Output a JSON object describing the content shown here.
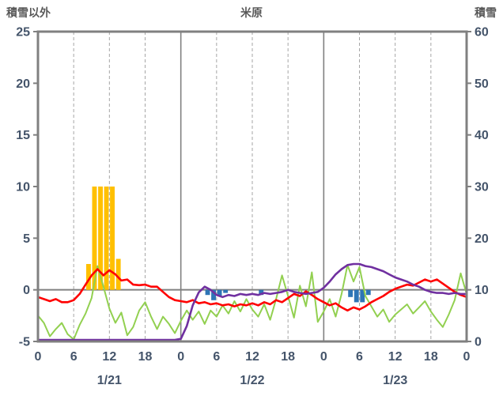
{
  "header": {
    "left_axis_title": "積雪以外",
    "title": "米原",
    "right_axis_title": "積雪"
  },
  "chart_data": {
    "type": "combo-bar-line",
    "title": "米原",
    "x_axis": {
      "unit": "hour",
      "range": [
        0,
        72
      ],
      "tick_positions": [
        0,
        6,
        12,
        18,
        24,
        30,
        36,
        42,
        48,
        54,
        60,
        66,
        72
      ],
      "tick_labels": [
        "0",
        "6",
        "12",
        "18",
        "0",
        "6",
        "12",
        "18",
        "0",
        "6",
        "12",
        "18",
        "0"
      ],
      "day_boundaries": [
        24,
        48
      ],
      "day_labels": [
        "1/21",
        "1/22",
        "1/23"
      ],
      "day_label_positions": [
        12,
        36,
        60
      ]
    },
    "y_left": {
      "title": "積雪以外",
      "min": -5,
      "max": 25,
      "ticks": [
        -5,
        0,
        5,
        10,
        15,
        20,
        25
      ]
    },
    "y_right": {
      "title": "積雪",
      "min": 0,
      "max": 60,
      "ticks": [
        0,
        10,
        20,
        30,
        40,
        50,
        60
      ]
    },
    "grid": {
      "vertical_6h": "dashed",
      "horizontal": "zero-line-only"
    },
    "legend": "none",
    "series": [
      {
        "name": "orange-bars",
        "type": "bar",
        "axis": "left",
        "color": "#FFC000",
        "values_by_hour": {
          "8": 2.5,
          "9": 10,
          "10": 10,
          "11": 10,
          "12": 10,
          "13": 3
        }
      },
      {
        "name": "blue-bars",
        "type": "bar",
        "axis": "left",
        "color": "#2E75B6",
        "values_by_hour": {
          "28": -0.5,
          "29": -1.0,
          "30": -0.6,
          "31": -0.3,
          "37": -0.5,
          "52": -0.7,
          "53": -1.2,
          "54": -1.2,
          "55": -0.5
        }
      },
      {
        "name": "green-line",
        "type": "line",
        "axis": "left",
        "color": "#92D050",
        "values": [
          -2.5,
          -3.2,
          -4.5,
          -3.8,
          -3.2,
          -4.3,
          -4.8,
          -3.4,
          -2.3,
          -0.8,
          2.3,
          0.3,
          -1.8,
          -3.2,
          -2.2,
          -4.4,
          -3.6,
          -2.0,
          -1.2,
          -2.6,
          -3.8,
          -2.6,
          -3.3,
          -4.2,
          -3.0,
          -2.0,
          -2.9,
          -2.1,
          -3.3,
          -2.0,
          -2.6,
          -1.5,
          -2.3,
          -1.1,
          -2.1,
          -0.9,
          -1.9,
          -2.6,
          -1.4,
          -2.9,
          -0.9,
          1.4,
          -0.6,
          -2.7,
          0.4,
          -1.6,
          1.7,
          -3.1,
          -2.1,
          -0.9,
          -2.6,
          -0.4,
          2.4,
          0.8,
          2.2,
          -0.6,
          -1.6,
          -2.6,
          -1.9,
          -3.1,
          -2.4,
          -1.9,
          -1.4,
          -2.3,
          -1.7,
          -1.1,
          -2.1,
          -2.9,
          -3.6,
          -2.4,
          -1.0,
          1.6,
          -0.4
        ]
      },
      {
        "name": "red-line",
        "type": "line",
        "axis": "left",
        "color": "#FF0000",
        "values": [
          -0.7,
          -0.9,
          -1.1,
          -0.9,
          -1.2,
          -1.2,
          -1.0,
          -0.4,
          0.5,
          1.4,
          2.0,
          1.4,
          1.9,
          1.5,
          0.9,
          1.0,
          0.5,
          0.45,
          0.5,
          0.3,
          0.3,
          -0.2,
          -0.7,
          -1.0,
          -1.1,
          -1.2,
          -1.0,
          -1.3,
          -1.2,
          -1.4,
          -1.3,
          -1.5,
          -1.4,
          -1.6,
          -1.4,
          -1.5,
          -1.3,
          -1.5,
          -1.2,
          -1.4,
          -1.0,
          -1.2,
          -0.8,
          -0.4,
          -0.6,
          -0.15,
          -0.5,
          -0.9,
          -1.2,
          -1.5,
          -1.3,
          -1.7,
          -2.0,
          -1.7,
          -1.9,
          -1.6,
          -1.2,
          -0.9,
          -0.6,
          -0.2,
          0.1,
          0.3,
          0.5,
          0.4,
          0.7,
          1.0,
          0.8,
          1.0,
          0.6,
          0.2,
          -0.2,
          -0.5,
          -0.7
        ]
      },
      {
        "name": "purple-line",
        "type": "line",
        "axis": "right",
        "color": "#7030A0",
        "values": [
          0.3,
          0.3,
          0.3,
          0.3,
          0.3,
          0.3,
          0.3,
          0.3,
          0.3,
          0.3,
          0.3,
          0.3,
          0.3,
          0.3,
          0.3,
          0.3,
          0.3,
          0.3,
          0.3,
          0.3,
          0.3,
          0.3,
          0.3,
          0.3,
          0.5,
          3,
          7,
          9.5,
          10.6,
          10,
          9,
          8.6,
          9,
          8.8,
          9.2,
          9,
          9.2,
          9,
          9.4,
          9.2,
          9.4,
          9.6,
          10,
          9.6,
          9.4,
          9.2,
          9.4,
          9.6,
          10.4,
          11.6,
          13,
          14,
          14.8,
          15,
          15,
          14.6,
          14.4,
          14,
          13.6,
          13,
          12.4,
          12,
          11.6,
          11,
          10.6,
          10,
          9.6,
          9.4,
          9.4,
          9.2,
          9.4,
          9.2,
          9.2
        ]
      }
    ],
    "style": {
      "axis_text_color": "#44546A",
      "title_color": "#595959",
      "border_color": "#808080",
      "grid_color": "#A6A6A6",
      "zero_line_color": "#808080"
    }
  }
}
